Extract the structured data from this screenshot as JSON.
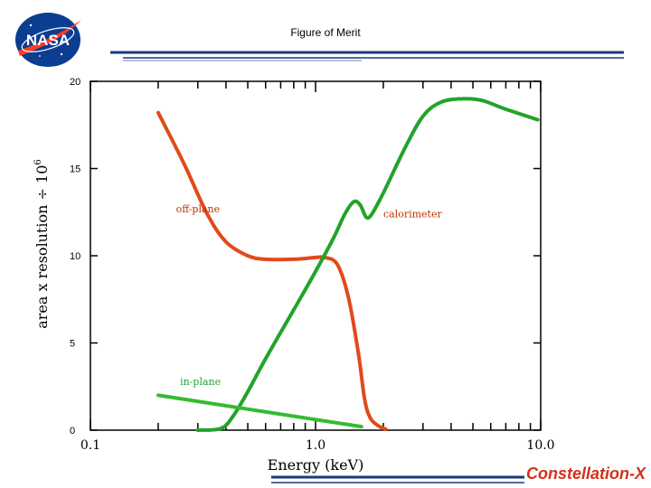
{
  "header": {
    "title": "Figure of Merit",
    "logo_text": "NASA",
    "brand_text": "Constellation-X"
  },
  "colors": {
    "offplane": "#e04a1a",
    "calorimeter": "#22a32a",
    "inplane": "#33bb33",
    "nasa_blue": "#0b3d91",
    "nasa_red": "#fc3d21",
    "rule_blue": "#1a3a7a"
  },
  "chart_data": {
    "type": "line",
    "title": "",
    "xlabel": "Energy (keV)",
    "ylabel": "area x resolution ÷ 10",
    "ylabel_exponent": "6",
    "x_scale": "log",
    "xlim": [
      0.1,
      10.0
    ],
    "ylim": [
      0,
      20
    ],
    "yticks": [
      0,
      5,
      10,
      15,
      20
    ],
    "xtick_labels": [
      {
        "value": 0.1,
        "label": "0.1"
      },
      {
        "value": 1.0,
        "label": "1.0"
      },
      {
        "value": 10.0,
        "label": "10.0"
      }
    ],
    "grid": false,
    "series": [
      {
        "name": "off-plane",
        "color": "#e04a1a",
        "points": [
          [
            0.2,
            18.2
          ],
          [
            0.26,
            15.3
          ],
          [
            0.33,
            12.4
          ],
          [
            0.4,
            10.8
          ],
          [
            0.5,
            10.0
          ],
          [
            0.6,
            9.8
          ],
          [
            0.8,
            9.8
          ],
          [
            1.0,
            9.9
          ],
          [
            1.1,
            9.9
          ],
          [
            1.25,
            9.5
          ],
          [
            1.4,
            7.6
          ],
          [
            1.55,
            4.4
          ],
          [
            1.65,
            1.8
          ],
          [
            1.75,
            0.7
          ],
          [
            1.9,
            0.25
          ],
          [
            2.05,
            0.05
          ]
        ]
      },
      {
        "name": "calorimeter",
        "color": "#22a32a",
        "points": [
          [
            0.3,
            0.0
          ],
          [
            0.38,
            0.1
          ],
          [
            0.43,
            0.8
          ],
          [
            0.5,
            2.2
          ],
          [
            0.6,
            4.1
          ],
          [
            0.8,
            6.9
          ],
          [
            1.0,
            9.1
          ],
          [
            1.2,
            11.0
          ],
          [
            1.35,
            12.4
          ],
          [
            1.48,
            13.1
          ],
          [
            1.58,
            12.9
          ],
          [
            1.68,
            12.2
          ],
          [
            1.78,
            12.4
          ],
          [
            2.0,
            13.6
          ],
          [
            2.5,
            16.2
          ],
          [
            3.0,
            18.0
          ],
          [
            3.6,
            18.8
          ],
          [
            4.5,
            19.0
          ],
          [
            5.5,
            18.9
          ],
          [
            7.0,
            18.4
          ],
          [
            9.7,
            17.8
          ]
        ]
      },
      {
        "name": "in-plane",
        "color": "#33bb33",
        "points": [
          [
            0.2,
            2.0
          ],
          [
            1.6,
            0.2
          ]
        ]
      }
    ],
    "annotations": [
      {
        "text": "off-plane",
        "x": 0.24,
        "y": 12.5,
        "color": "#c03000"
      },
      {
        "text": "calorimeter",
        "x": 2.0,
        "y": 12.2,
        "color": "#c03000"
      },
      {
        "text": "in-plane",
        "x": 0.25,
        "y": 2.6,
        "color": "#22a32a"
      }
    ]
  }
}
